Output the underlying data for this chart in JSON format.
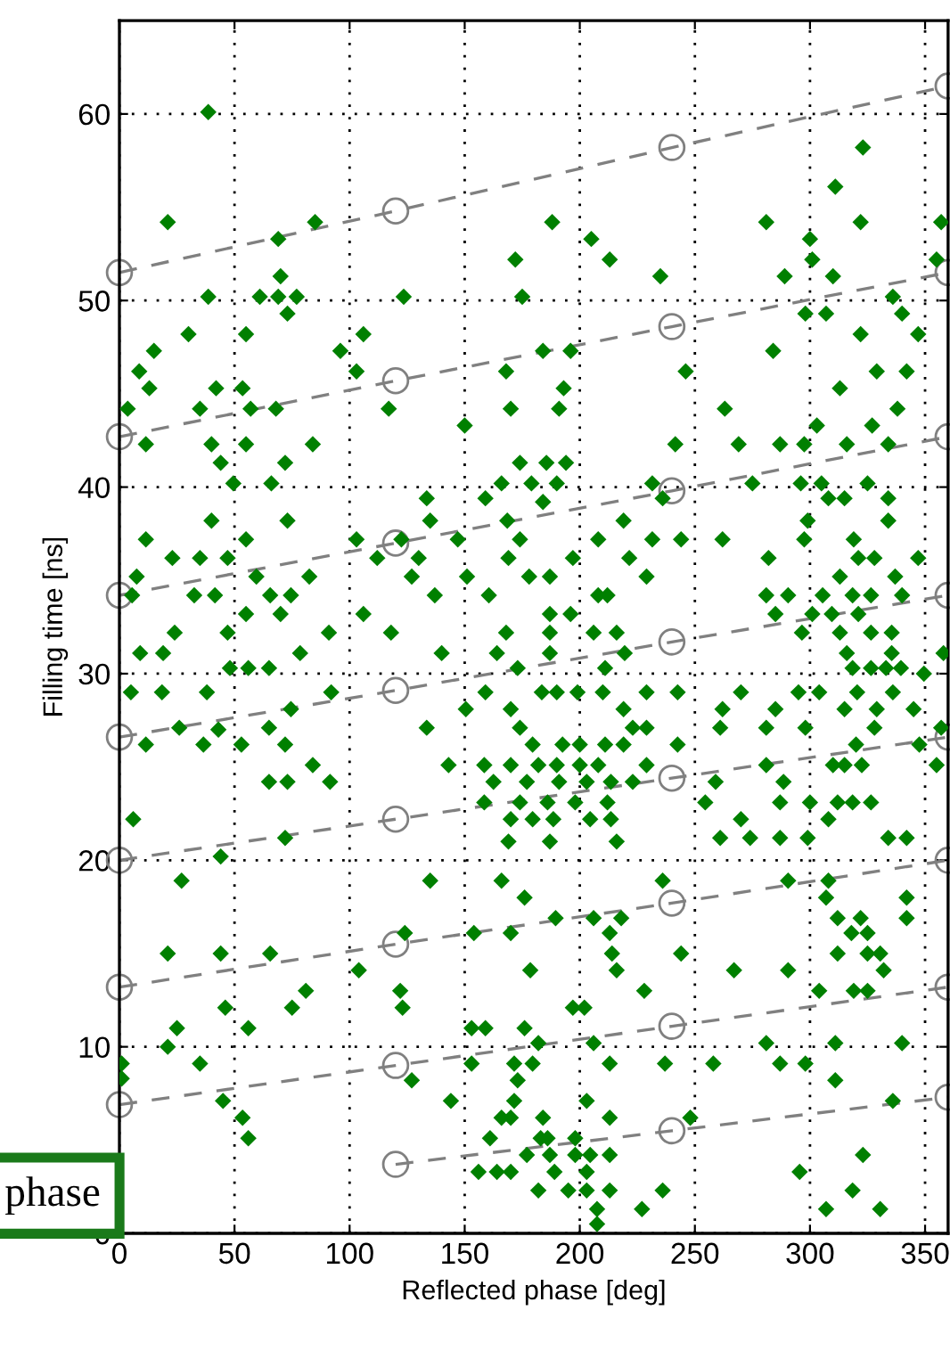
{
  "chart_data": {
    "type": "scatter",
    "xlabel": "Reflected phase [deg]",
    "ylabel": "Filling time [ns]",
    "xlim": [
      0,
      360
    ],
    "ylim": [
      0,
      65
    ],
    "xticks": [
      0,
      50,
      100,
      150,
      200,
      250,
      300,
      350
    ],
    "yticks": [
      0,
      10,
      20,
      30,
      40,
      50,
      60
    ],
    "grid": true,
    "legend": false,
    "annotations": [
      "phase"
    ],
    "series": [
      {
        "color": "#008000",
        "marker": "diamond",
        "x": [
          38.6,
          21,
          69,
          85,
          38.6,
          69,
          61,
          77,
          70,
          73,
          123.5,
          30,
          55,
          15,
          8.6,
          96,
          106,
          103,
          172,
          175,
          188,
          205,
          213,
          235,
          184,
          196,
          168,
          193,
          170,
          150,
          246,
          263,
          281,
          311,
          323,
          322,
          300,
          301,
          289,
          310,
          298,
          307,
          336,
          340,
          347,
          357,
          355,
          284,
          322,
          329,
          313,
          342,
          327,
          303,
          338,
          117,
          68,
          57,
          35,
          3.6,
          13,
          42,
          53.5,
          191,
          11.5,
          40,
          55,
          84,
          44,
          72,
          49.5,
          66,
          11.5,
          40,
          55,
          73,
          23,
          35,
          47,
          7.5,
          59.5,
          82.5,
          5.5,
          32.5,
          41.5,
          65.5,
          74.5,
          55,
          70,
          24,
          47,
          91,
          9,
          19,
          78.5,
          48,
          56,
          65,
          5,
          18.5,
          38,
          74.5,
          92,
          26,
          36.5,
          43,
          65,
          11.5,
          53,
          72,
          84,
          91.5,
          65,
          73,
          6,
          72,
          44,
          103,
          112,
          106,
          118,
          122.5,
          130,
          127,
          133.5,
          135,
          137,
          140,
          133.5,
          143,
          147,
          151,
          150.5,
          159,
          166,
          174,
          185.5,
          194,
          179,
          190,
          184,
          168.5,
          174,
          169,
          160.5,
          178,
          187,
          197,
          208,
          219,
          221.5,
          229,
          231.5,
          231.5,
          236,
          244,
          241.5,
          208,
          212,
          187,
          196,
          168,
          187,
          206,
          216,
          164,
          187,
          219.5,
          173,
          211,
          159,
          183.5,
          190,
          199,
          210,
          219,
          229,
          242.5,
          170,
          174,
          223,
          229,
          179.5,
          192.5,
          200,
          211,
          219,
          158.5,
          170,
          182,
          190,
          200,
          208,
          162.5,
          177,
          191,
          203,
          213.5,
          223,
          158.5,
          174,
          186,
          198,
          212,
          170,
          179.5,
          188.5,
          204.5,
          213.5,
          169,
          187,
          216,
          242.5,
          229,
          269,
          287,
          297.5,
          316,
          334,
          275,
          296,
          305,
          325,
          308,
          315,
          334,
          299,
          334,
          262,
          297.5,
          319,
          282,
          321,
          328,
          347,
          313,
          337,
          281,
          290.5,
          305.5,
          318.5,
          326.5,
          340,
          285,
          301,
          309.5,
          321,
          296.5,
          313,
          326.5,
          335.5,
          316,
          335.5,
          358,
          318.5,
          326.5,
          333,
          339.5,
          349.5,
          270,
          295,
          304,
          320.5,
          336,
          262,
          285,
          315,
          329,
          345,
          261,
          281,
          298,
          328,
          357,
          320,
          347.5,
          259,
          281,
          288.5,
          310,
          315,
          322.5,
          355,
          254.5,
          287,
          300,
          312,
          318.5,
          326.5,
          270,
          308,
          261,
          274,
          287,
          299,
          334,
          342,
          27,
          135,
          166,
          176,
          236,
          290.5,
          308,
          307,
          189.5,
          206,
          218,
          312,
          322,
          342,
          342,
          124,
          154,
          170,
          213,
          318,
          325,
          21,
          44,
          65.5,
          214,
          244,
          312,
          325,
          330.5,
          104,
          178.5,
          216,
          267,
          290.5,
          332,
          81,
          122,
          228,
          304,
          319,
          325,
          46,
          75,
          123,
          197,
          202,
          25,
          56,
          153,
          159,
          176,
          21,
          182,
          206,
          281,
          311,
          340,
          1,
          1,
          35,
          127,
          153,
          171.5,
          179.5,
          213,
          237,
          258,
          287,
          298,
          311,
          173,
          45,
          144,
          171.5,
          203,
          336,
          53.5,
          56,
          166,
          170,
          184,
          213,
          248,
          161,
          183,
          186,
          198,
          177,
          187,
          198,
          204.5,
          213,
          323,
          156,
          164,
          170,
          189,
          203,
          295.5,
          182,
          195,
          203,
          213,
          236,
          318.5,
          207.5,
          227,
          307,
          330.5,
          207.5
        ],
        "values": [
          60.1,
          54.2,
          53.3,
          54.2,
          50.2,
          50.2,
          50.2,
          50.2,
          51.3,
          49.3,
          50.2,
          48.2,
          48.2,
          47.3,
          46.2,
          47.3,
          48.2,
          46.2,
          52.2,
          50.2,
          54.2,
          53.3,
          52.2,
          51.3,
          47.3,
          47.3,
          46.2,
          45.3,
          44.2,
          43.3,
          46.2,
          44.2,
          54.2,
          56.1,
          58.2,
          54.2,
          53.3,
          52.2,
          51.3,
          51.3,
          49.3,
          49.3,
          50.2,
          49.3,
          48.2,
          54.2,
          52.2,
          47.3,
          48.2,
          46.2,
          45.3,
          46.2,
          43.3,
          43.3,
          44.2,
          44.2,
          44.2,
          44.2,
          44.2,
          44.2,
          45.3,
          45.3,
          45.3,
          44.2,
          42.3,
          42.3,
          42.3,
          42.3,
          41.3,
          41.3,
          40.2,
          40.2,
          37.2,
          38.2,
          37.2,
          38.2,
          36.2,
          36.2,
          36.2,
          35.2,
          35.2,
          35.2,
          34.2,
          34.2,
          34.2,
          34.2,
          34.2,
          33.2,
          33.2,
          32.2,
          32.2,
          32.2,
          31.1,
          31.1,
          31.1,
          30.3,
          30.3,
          30.3,
          29.0,
          29.0,
          29.0,
          28.1,
          29.0,
          27.1,
          26.2,
          27.0,
          27.1,
          26.2,
          26.2,
          26.2,
          25.1,
          24.2,
          24.2,
          24.2,
          22.2,
          21.2,
          20.2,
          37.2,
          36.2,
          33.2,
          32.2,
          37.2,
          36.2,
          35.2,
          39.4,
          38.2,
          34.2,
          31.1,
          27.1,
          25.1,
          37.2,
          35.2,
          28.1,
          39.4,
          40.2,
          41.3,
          41.3,
          41.3,
          40.2,
          40.2,
          39.2,
          38.2,
          37.2,
          36.2,
          34.2,
          35.2,
          35.2,
          36.2,
          37.2,
          38.2,
          36.2,
          35.2,
          37.2,
          40.2,
          39.4,
          37.2,
          42.3,
          34.2,
          34.2,
          33.2,
          33.2,
          32.2,
          32.2,
          32.2,
          32.2,
          31.1,
          31.1,
          31.1,
          30.3,
          30.3,
          29.0,
          29.0,
          29.0,
          29.0,
          29.0,
          28.1,
          29.0,
          29.0,
          28.1,
          27.1,
          27.1,
          27.1,
          26.2,
          26.2,
          26.2,
          26.2,
          26.2,
          25.1,
          25.1,
          25.1,
          25.1,
          25.1,
          25.1,
          24.2,
          24.2,
          24.2,
          24.2,
          24.2,
          24.2,
          23.1,
          23.1,
          23.1,
          23.1,
          23.1,
          22.2,
          22.2,
          22.2,
          22.2,
          22.2,
          21.0,
          21.0,
          21.0,
          26.2,
          25.1,
          42.3,
          42.3,
          42.3,
          42.3,
          42.3,
          40.2,
          40.2,
          40.2,
          40.2,
          39.4,
          39.4,
          39.4,
          38.2,
          38.2,
          37.2,
          37.2,
          37.2,
          36.2,
          36.2,
          36.2,
          36.2,
          35.2,
          35.2,
          34.2,
          34.2,
          34.2,
          34.2,
          34.2,
          34.2,
          33.2,
          33.2,
          33.2,
          33.2,
          32.2,
          32.2,
          32.2,
          32.2,
          31.1,
          31.1,
          31.1,
          30.3,
          30.3,
          30.3,
          30.3,
          30.0,
          29.0,
          29.0,
          29.0,
          29.0,
          29.0,
          28.1,
          28.1,
          28.1,
          28.1,
          28.1,
          27.1,
          27.1,
          27.1,
          27.1,
          27.1,
          26.2,
          26.2,
          24.2,
          25.1,
          24.2,
          25.1,
          25.1,
          25.1,
          25.1,
          23.1,
          23.1,
          23.1,
          23.1,
          23.1,
          23.1,
          22.2,
          22.2,
          21.2,
          21.2,
          21.2,
          21.2,
          21.2,
          21.2,
          18.9,
          18.9,
          18.9,
          18.0,
          18.9,
          18.9,
          18.9,
          18.0,
          16.9,
          16.9,
          16.9,
          16.9,
          16.9,
          18.0,
          16.9,
          16.1,
          16.1,
          16.1,
          16.1,
          16.1,
          16.1,
          15.0,
          15.0,
          15.0,
          15.0,
          15.0,
          15.0,
          15.0,
          15.0,
          14.1,
          14.1,
          14.1,
          14.1,
          14.1,
          14.1,
          13.0,
          13.0,
          13.0,
          13.0,
          13.0,
          13.0,
          12.1,
          12.1,
          12.1,
          12.1,
          12.1,
          11.0,
          11.0,
          11.0,
          11.0,
          11.0,
          10.0,
          10.2,
          10.2,
          10.2,
          10.2,
          10.2,
          9.1,
          8.3,
          9.1,
          8.2,
          9.1,
          9.1,
          9.1,
          9.1,
          9.1,
          9.1,
          9.1,
          9.1,
          8.2,
          8.2,
          7.1,
          7.1,
          7.1,
          7.1,
          7.1,
          6.2,
          5.1,
          6.2,
          6.2,
          6.2,
          6.2,
          6.2,
          5.1,
          5.1,
          5.1,
          5.1,
          4.2,
          4.2,
          4.2,
          4.2,
          4.2,
          4.2,
          3.3,
          3.3,
          3.3,
          3.3,
          3.3,
          3.3,
          2.3,
          2.3,
          2.3,
          2.3,
          2.3,
          2.3,
          1.3,
          1.3,
          1.3,
          1.3,
          0.5
        ]
      },
      {
        "type": "line",
        "color": "#808080",
        "marker": "circle",
        "line_style": "dashed",
        "x": [
          0,
          120,
          240,
          360
        ],
        "values": [
          51.5,
          54.8,
          58.2,
          61.5
        ]
      },
      {
        "type": "line",
        "color": "#808080",
        "marker": "circle",
        "line_style": "dashed",
        "x": [
          0,
          120,
          240,
          360
        ],
        "values": [
          42.7,
          45.7,
          48.6,
          51.5
        ]
      },
      {
        "type": "line",
        "color": "#808080",
        "marker": "circle",
        "line_style": "dashed",
        "x": [
          0,
          120,
          240,
          360
        ],
        "values": [
          34.2,
          37.0,
          39.8,
          42.7
        ]
      },
      {
        "type": "line",
        "color": "#808080",
        "marker": "circle",
        "line_style": "dashed",
        "x": [
          0,
          120,
          240,
          360
        ],
        "values": [
          26.6,
          29.1,
          31.7,
          34.2
        ]
      },
      {
        "type": "line",
        "color": "#808080",
        "marker": "circle",
        "line_style": "dashed",
        "x": [
          0,
          120,
          240,
          360
        ],
        "values": [
          20.0,
          22.2,
          24.4,
          26.6
        ]
      },
      {
        "type": "line",
        "color": "#808080",
        "marker": "circle",
        "line_style": "dashed",
        "x": [
          0,
          120,
          240,
          360
        ],
        "values": [
          13.2,
          15.5,
          17.7,
          20.0
        ]
      },
      {
        "type": "line",
        "color": "#808080",
        "marker": "circle",
        "line_style": "dashed",
        "x": [
          0,
          120,
          240,
          360
        ],
        "values": [
          6.9,
          9.0,
          11.1,
          13.2
        ]
      },
      {
        "type": "line",
        "color": "#808080",
        "marker": "circle",
        "line_style": "dashed",
        "x": [
          120,
          240,
          360
        ],
        "values": [
          3.7,
          5.5,
          7.3
        ]
      }
    ]
  }
}
